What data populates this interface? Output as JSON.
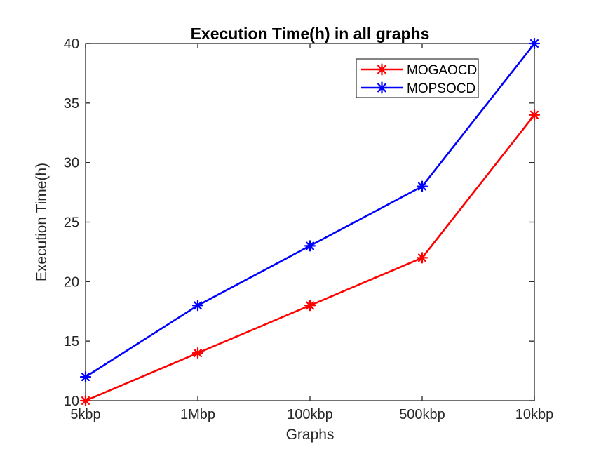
{
  "chart_data": {
    "type": "line",
    "title": "Execution Time(h) in all graphs",
    "xlabel": "Graphs",
    "ylabel": "Execution Time(h)",
    "categories": [
      "5kbp",
      "1Mbp",
      "100kbp",
      "500kbp",
      "10kbp"
    ],
    "series": [
      {
        "name": "MOGAOCD",
        "color": "#ff0000",
        "marker": "asterisk",
        "values": [
          10,
          14,
          18,
          22,
          34
        ]
      },
      {
        "name": "MOPSOCD",
        "color": "#0000ff",
        "marker": "asterisk",
        "values": [
          12,
          18,
          23,
          28,
          40
        ]
      }
    ],
    "y_ticks": [
      10,
      15,
      20,
      25,
      30,
      35,
      40
    ],
    "ylim": [
      10,
      40
    ],
    "grid": false,
    "legend_position": "top-right",
    "colors": {
      "axis": "#262626",
      "title": "#000000",
      "tick_label": "#262626",
      "legend_border": "#333333",
      "background": "#ffffff"
    }
  }
}
